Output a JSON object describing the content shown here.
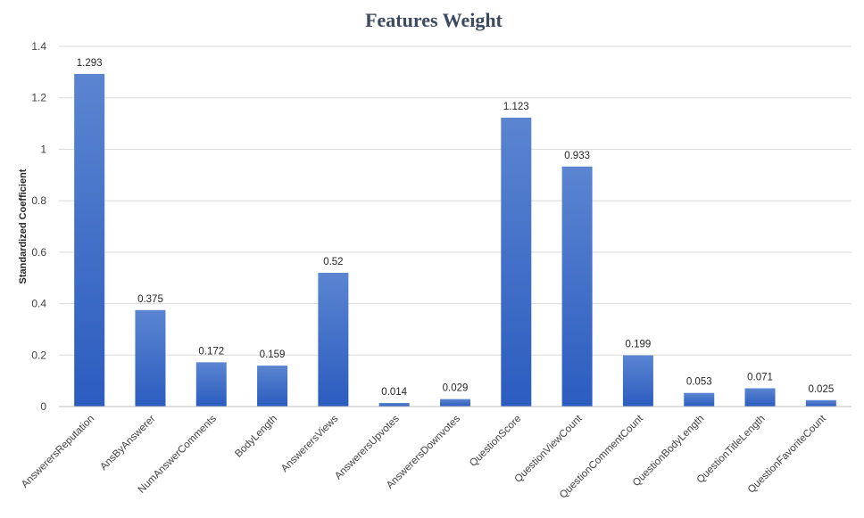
{
  "chart_data": {
    "type": "bar",
    "title": "Features Weight",
    "xlabel": "",
    "ylabel": "Standardized Coefficient",
    "categories": [
      "AnswerersReputation",
      "AnsByAnswerer",
      "NumAnswerComments",
      "BodyLength",
      "AnswerersViews",
      "AnswerersUpvotes",
      "AnswerersDownvotes",
      "QuestionScore",
      "QuestionViewCount",
      "QuestionCommentCount",
      "QuestionBodyLength",
      "QuestionTitleLength",
      "QuestionFavoriteCount"
    ],
    "values": [
      1.293,
      0.375,
      0.172,
      0.159,
      0.52,
      0.014,
      0.029,
      1.123,
      0.933,
      0.199,
      0.053,
      0.071,
      0.025
    ],
    "data_labels": [
      "1.293",
      "0.375",
      "0.172",
      "0.159",
      "0.52",
      "0.014",
      "0.029",
      "1.123",
      "0.933",
      "0.199",
      "0.053",
      "0.071",
      "0.025"
    ],
    "ylim": [
      0,
      1.4
    ],
    "yticks": [
      0,
      0.2,
      0.4,
      0.6,
      0.8,
      1,
      1.2,
      1.4
    ],
    "ytick_labels": [
      "0",
      "0.2",
      "0.4",
      "0.6",
      "0.8",
      "1",
      "1.2",
      "1.4"
    ],
    "grid": true,
    "legend": "none",
    "colors": {
      "bar_top": "#5b85d1",
      "bar_bottom": "#2b5cbf",
      "title": "#3b4a5e"
    }
  }
}
